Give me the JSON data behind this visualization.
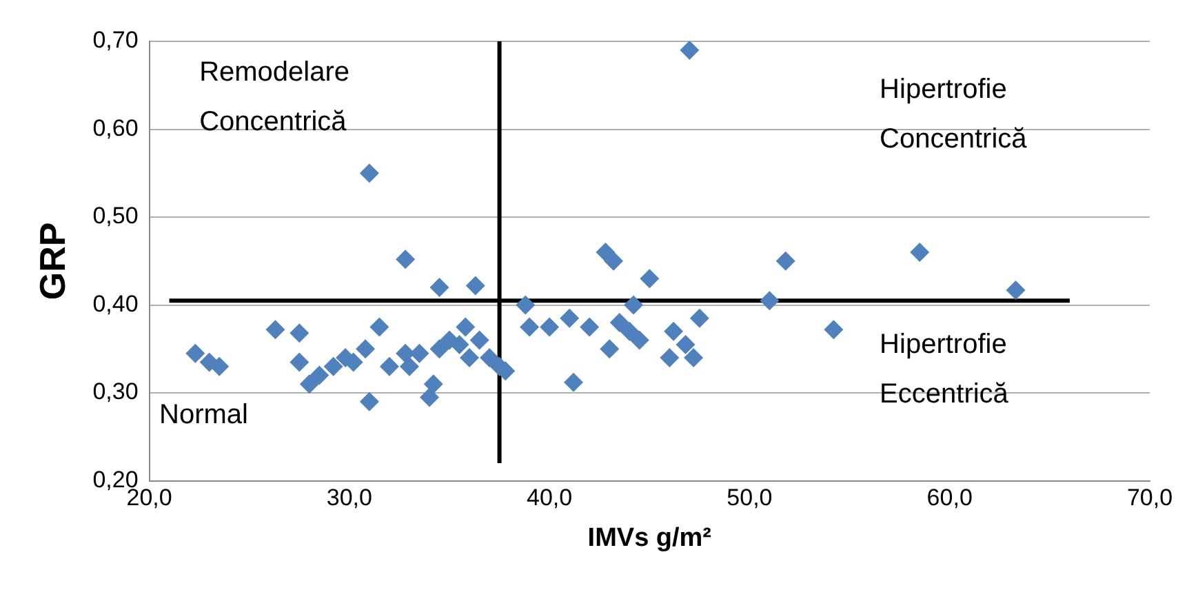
{
  "chart_data": {
    "type": "scatter",
    "xlabel": "IMVs g/m²",
    "ylabel": "GRP",
    "marker": "diamond",
    "grid": "y",
    "legend": false,
    "xlim": [
      20,
      70
    ],
    "ylim": [
      0.2,
      0.7
    ],
    "xticks": [
      {
        "value": 20,
        "label": "20,0"
      },
      {
        "value": 30,
        "label": "30,0"
      },
      {
        "value": 40,
        "label": "40,0"
      },
      {
        "value": 50,
        "label": "50,0"
      },
      {
        "value": 60,
        "label": "60,0"
      },
      {
        "value": 70,
        "label": "70,0"
      }
    ],
    "yticks": [
      {
        "value": 0.2,
        "label": "0,20"
      },
      {
        "value": 0.3,
        "label": "0,30"
      },
      {
        "value": 0.4,
        "label": "0,40"
      },
      {
        "value": 0.5,
        "label": "0,50"
      },
      {
        "value": 0.6,
        "label": "0,60"
      },
      {
        "value": 0.7,
        "label": "0,70"
      }
    ],
    "series": [
      {
        "color": "#4f81bd",
        "x": [
          22.3,
          23.0,
          23.5,
          26.3,
          27.5,
          27.5,
          28.0,
          28.5,
          29.2,
          29.8,
          30.2,
          30.8,
          31.0,
          31.5,
          31.0,
          32.0,
          32.8,
          32.8,
          33.0,
          33.5,
          34.0,
          34.2,
          34.5,
          34.5,
          35.0,
          35.5,
          35.8,
          36.0,
          36.3,
          36.5,
          37.0,
          37.5,
          37.8,
          38.8,
          39.0,
          40.0,
          41.0,
          41.2,
          42.0,
          42.8,
          43.2,
          43.0,
          43.5,
          44.0,
          44.2,
          44.5,
          45.0,
          46.0,
          46.2,
          47.0,
          46.8,
          47.2,
          47.5,
          51.0,
          51.8,
          54.2,
          58.5,
          63.3
        ],
        "values": [
          0.345,
          0.335,
          0.33,
          0.372,
          0.368,
          0.335,
          0.31,
          0.32,
          0.33,
          0.34,
          0.335,
          0.35,
          0.29,
          0.375,
          0.55,
          0.33,
          0.345,
          0.452,
          0.33,
          0.345,
          0.295,
          0.31,
          0.42,
          0.35,
          0.36,
          0.355,
          0.375,
          0.34,
          0.422,
          0.36,
          0.34,
          0.33,
          0.325,
          0.4,
          0.375,
          0.375,
          0.385,
          0.312,
          0.375,
          0.46,
          0.45,
          0.35,
          0.38,
          0.37,
          0.4,
          0.36,
          0.43,
          0.34,
          0.37,
          0.69,
          0.355,
          0.34,
          0.385,
          0.405,
          0.45,
          0.372,
          0.46,
          0.417
        ]
      }
    ],
    "ref_lines": [
      {
        "axis": "x",
        "value": 37.5,
        "color": "#000000"
      },
      {
        "axis": "y",
        "value": 0.405,
        "color": "#000000"
      }
    ],
    "annotations": [
      "Remodelare\nConcentrică",
      "Hipertrofie\nConcentrică",
      "Normal",
      "Hipertrofie\nEccentrică"
    ]
  }
}
